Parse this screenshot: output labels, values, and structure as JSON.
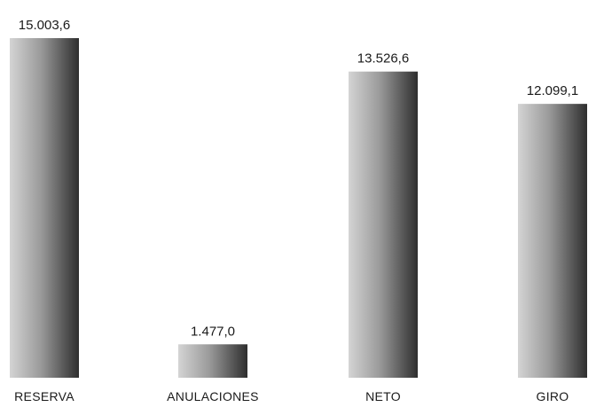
{
  "chart_data": {
    "type": "bar",
    "title": "",
    "xlabel": "",
    "ylabel": "",
    "categories": [
      "RESERVA",
      "ANULACIONES",
      "NETO",
      "GIRO"
    ],
    "values": [
      15003.6,
      1477.0,
      13526.6,
      12099.1
    ],
    "value_labels": [
      "15.003,6",
      "1.477,0",
      "13.526,6",
      "12.099,1"
    ],
    "ylim": [
      0,
      15003.6
    ],
    "grid": false,
    "legend": "none",
    "colors": {
      "bar_light": "#d4d4d4",
      "bar_dark": "#2e2e2e",
      "text": "#1a1a1a"
    }
  }
}
